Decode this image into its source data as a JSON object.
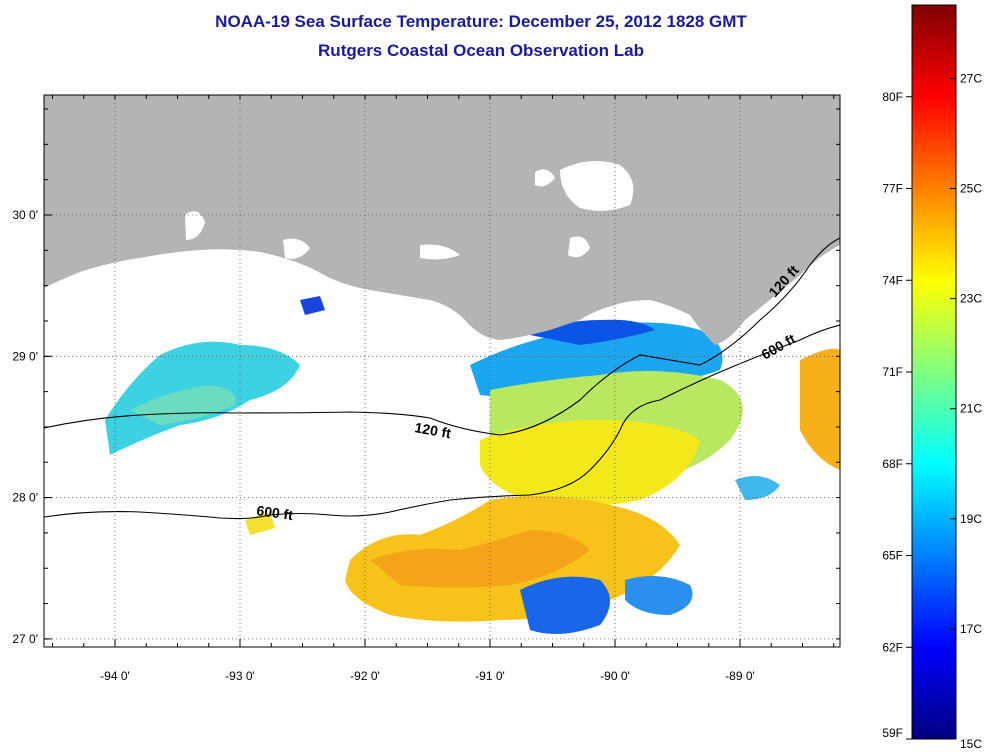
{
  "title": "NOAA-19 Sea Surface Temperature:  December 25, 2012 1828 GMT",
  "subtitle": "Rutgers Coastal Ocean Observation Lab",
  "map": {
    "lon_ticks": [
      {
        "value": -94,
        "label": "-94 0'"
      },
      {
        "value": -93,
        "label": "-93 0'"
      },
      {
        "value": -92,
        "label": "-92 0'"
      },
      {
        "value": -91,
        "label": "-91 0'"
      },
      {
        "value": -90,
        "label": "-90 0'"
      },
      {
        "value": -89,
        "label": "-89 0'"
      }
    ],
    "lat_ticks": [
      {
        "value": 30,
        "label": "30 0'"
      },
      {
        "value": 29,
        "label": "29 0'"
      },
      {
        "value": 28,
        "label": "28 0'"
      },
      {
        "value": 27,
        "label": "27 0'"
      }
    ],
    "contours": [
      {
        "depth": "120 ft",
        "label": "120 ft"
      },
      {
        "depth": "600 ft",
        "label": "600 ft"
      },
      {
        "depth": "120 ft",
        "label": "120 ft"
      },
      {
        "depth": "600 ft",
        "label": "600 ft"
      }
    ],
    "land_color": "#b4b4b4",
    "grid": true
  },
  "colorbar": {
    "min_f": 59,
    "max_f": 83,
    "fahrenheit_labels": [
      {
        "value": 59,
        "label": "59F"
      },
      {
        "value": 62,
        "label": "62F"
      },
      {
        "value": 65,
        "label": "65F"
      },
      {
        "value": 68,
        "label": "68F"
      },
      {
        "value": 71,
        "label": "71F"
      },
      {
        "value": 74,
        "label": "74F"
      },
      {
        "value": 77,
        "label": "77F"
      },
      {
        "value": 80,
        "label": "80F"
      }
    ],
    "celsius_labels": [
      {
        "value": 15,
        "label": "15C"
      },
      {
        "value": 17,
        "label": "17C"
      },
      {
        "value": 19,
        "label": "19C"
      },
      {
        "value": 21,
        "label": "21C"
      },
      {
        "value": 23,
        "label": "23C"
      },
      {
        "value": 25,
        "label": "25C"
      },
      {
        "value": 27,
        "label": "27C"
      }
    ],
    "colors": [
      "#00007f",
      "#0000ff",
      "#0080ff",
      "#00ffff",
      "#80ff80",
      "#ffff00",
      "#ff8000",
      "#ff0000",
      "#7f0000"
    ]
  }
}
